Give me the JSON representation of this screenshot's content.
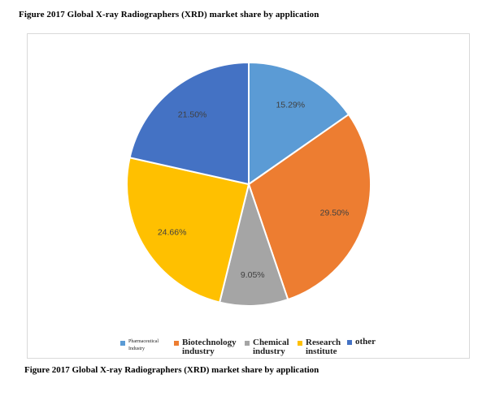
{
  "title": "Figure 2017 Global X-ray Radiographers (XRD) market share by application",
  "caption": "Figure 2017 Global X-ray Radiographers (XRD) market share by application",
  "chart_data": {
    "type": "pie",
    "title": "Figure 2017 Global X-ray Radiographers (XRD) market share by application",
    "categories": [
      "Pharmaceutical Industry",
      "Biotechnology industry",
      "Chemical industry",
      "Research institute",
      "other"
    ],
    "values": [
      15.29,
      29.5,
      9.05,
      24.66,
      21.5
    ],
    "labels": [
      "15.29%",
      "29.50%",
      "9.05%",
      "24.66%",
      "21.50%"
    ],
    "colors": [
      "#5B9BD5",
      "#ED7D31",
      "#A5A5A5",
      "#FFC000",
      "#4472C4"
    ],
    "start_angle": "12 o'clock, clockwise",
    "legend_position": "bottom"
  },
  "legend": [
    {
      "line1": "Pharmaceutical",
      "line2": "Industry",
      "color": "#5B9BD5"
    },
    {
      "line1": "Biotechnology",
      "line2": "industry",
      "color": "#ED7D31"
    },
    {
      "line1": "Chemical",
      "line2": "industry",
      "color": "#A5A5A5"
    },
    {
      "line1": "Research",
      "line2": "institute",
      "color": "#FFC000"
    },
    {
      "line1": "other",
      "line2": "",
      "color": "#4472C4"
    }
  ]
}
